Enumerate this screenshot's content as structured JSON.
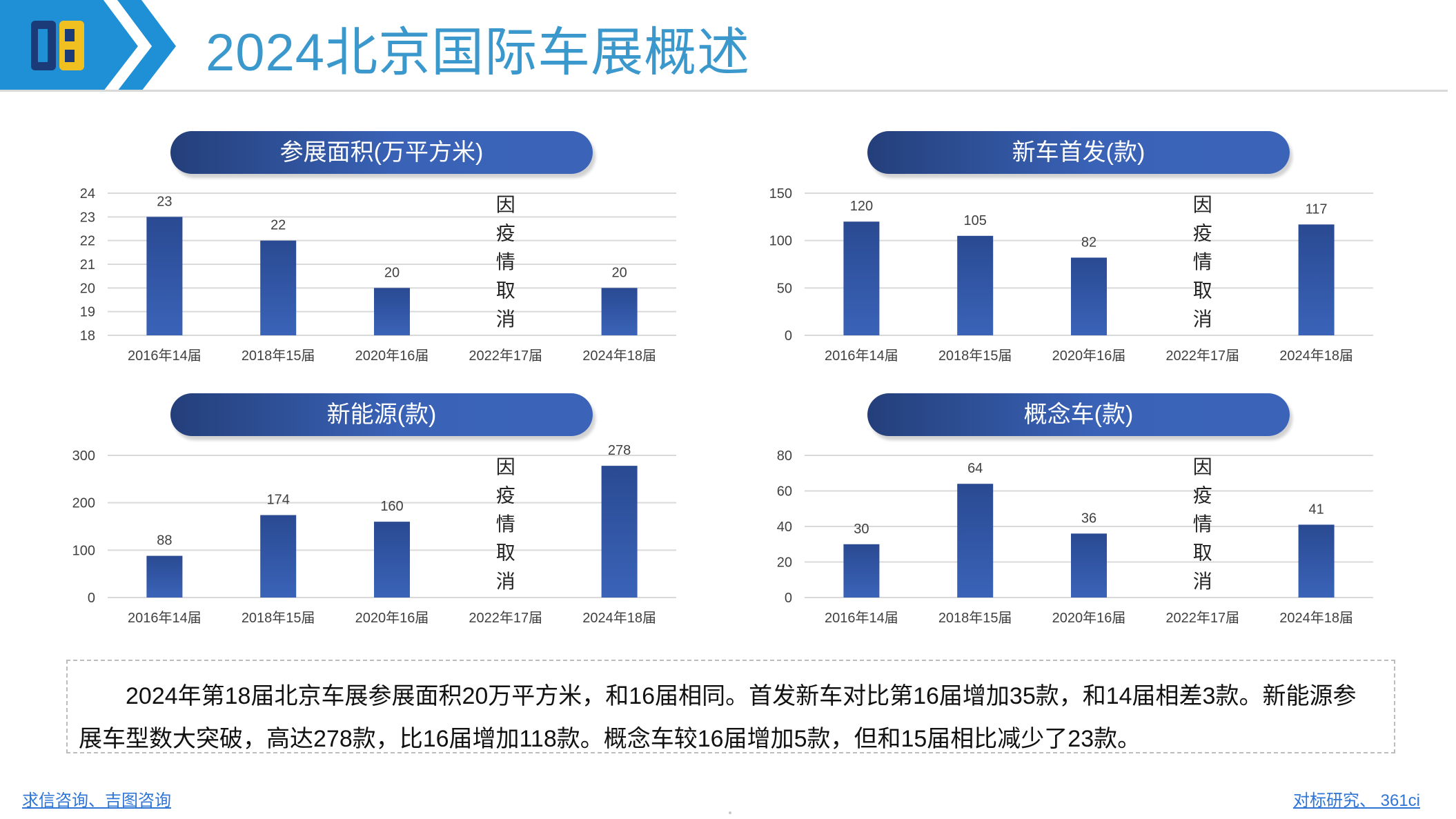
{
  "header": {
    "logo_text": "DB",
    "title": "2024北京国际车展概述"
  },
  "colors": {
    "bar": "#3a63b8",
    "pill": "#2b4c94",
    "title": "#3a98cc",
    "link": "#2e75d6",
    "grid": "#d9d9d9",
    "logo_blue": "#1f8fd6",
    "logo_dark": "#1a3a78"
  },
  "chart_data": [
    {
      "type": "bar",
      "title": "参展面积(万平方米)",
      "categories": [
        "2016年14届",
        "2018年15届",
        "2020年16届",
        "2022年17届",
        "2024年18届"
      ],
      "values": [
        23,
        22,
        20,
        null,
        20
      ],
      "ylim": [
        18,
        24
      ],
      "yticks": [
        18,
        19,
        20,
        21,
        22,
        23,
        24
      ],
      "gap_note": "因疫情取消",
      "grid": true
    },
    {
      "type": "bar",
      "title": "新车首发(款)",
      "categories": [
        "2016年14届",
        "2018年15届",
        "2020年16届",
        "2022年17届",
        "2024年18届"
      ],
      "values": [
        120,
        105,
        82,
        null,
        117
      ],
      "ylim": [
        0,
        150
      ],
      "yticks": [
        0,
        50,
        100,
        150
      ],
      "gap_note": "因疫情取消",
      "grid": true
    },
    {
      "type": "bar",
      "title": "新能源(款)",
      "categories": [
        "2016年14届",
        "2018年15届",
        "2020年16届",
        "2022年17届",
        "2024年18届"
      ],
      "values": [
        88,
        174,
        160,
        null,
        278
      ],
      "ylim": [
        0,
        300
      ],
      "yticks": [
        0,
        100,
        200,
        300
      ],
      "gap_note": "因疫情取消",
      "grid": true
    },
    {
      "type": "bar",
      "title": "概念车(款)",
      "categories": [
        "2016年14届",
        "2018年15届",
        "2020年16届",
        "2022年17届",
        "2024年18届"
      ],
      "values": [
        30,
        64,
        36,
        null,
        41
      ],
      "ylim": [
        0,
        80
      ],
      "yticks": [
        0,
        20,
        40,
        60,
        80
      ],
      "gap_note": "因疫情取消",
      "grid": true
    }
  ],
  "summary": {
    "text": "2024年第18届北京车展参展面积20万平方米，和16届相同。首发新车对比第16届增加35款，和14届相差3款。新能源参展车型数大突破，高达278款，比16届增加118款。概念车较16届增加5款，但和15届相比减少了23款。"
  },
  "footer": {
    "left_link": "求信咨询、吉图咨询",
    "right_link": "对标研究、 361ci"
  }
}
